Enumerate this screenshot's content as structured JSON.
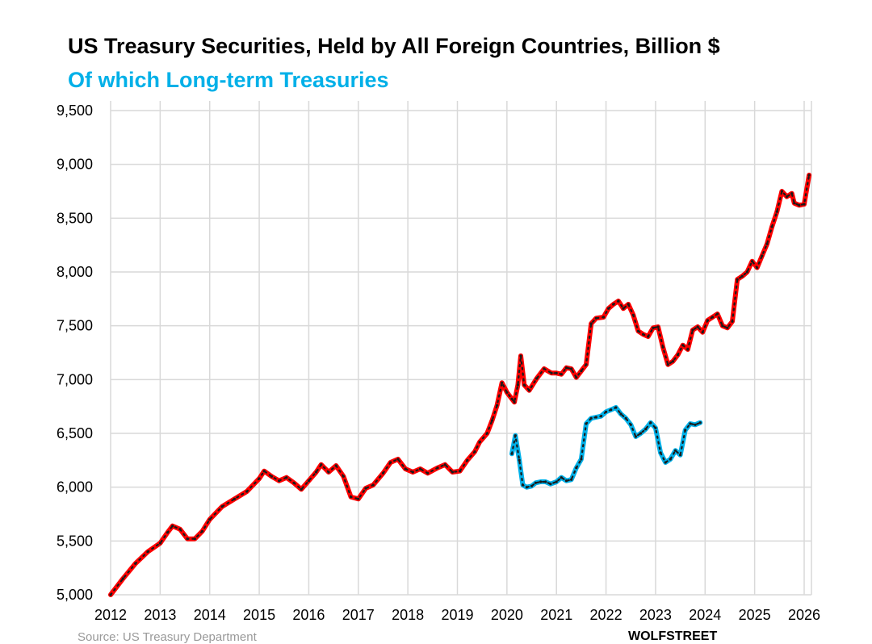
{
  "chart_data": {
    "type": "line",
    "title": "US Treasury Securities, Held by All Foreign Countries, Billion $",
    "subtitle": "Of which Long-term Treasuries",
    "xlabel": "",
    "ylabel": "",
    "xlim": [
      2012,
      2026.1
    ],
    "ylim": [
      5000,
      9500
    ],
    "x_ticks": [
      2012,
      2013,
      2014,
      2015,
      2016,
      2017,
      2018,
      2019,
      2020,
      2021,
      2022,
      2023,
      2024,
      2025,
      2026
    ],
    "x_tick_labels": [
      "2012",
      "2013",
      "2014",
      "2015",
      "2016",
      "2017",
      "2018",
      "2019",
      "2020",
      "2021",
      "2022",
      "2023",
      "2024",
      "2025",
      "2026"
    ],
    "y_ticks": [
      5000,
      5500,
      6000,
      6500,
      7000,
      7500,
      8000,
      8500,
      9000,
      9500
    ],
    "y_tick_labels": [
      "5,000",
      "5,500",
      "6,000",
      "6,500",
      "7,000",
      "7,500",
      "8,000",
      "8,500",
      "9,000",
      "9,500"
    ],
    "grid": true,
    "series": [
      {
        "name": "US Treasury Securities, Held by All Foreign Countries",
        "color": "#ff0000",
        "points": [
          [
            2012.0,
            5000
          ],
          [
            2012.25,
            5150
          ],
          [
            2012.5,
            5290
          ],
          [
            2012.75,
            5400
          ],
          [
            2013.0,
            5480
          ],
          [
            2013.15,
            5580
          ],
          [
            2013.25,
            5640
          ],
          [
            2013.4,
            5610
          ],
          [
            2013.55,
            5520
          ],
          [
            2013.7,
            5520
          ],
          [
            2013.85,
            5590
          ],
          [
            2014.0,
            5700
          ],
          [
            2014.25,
            5820
          ],
          [
            2014.5,
            5890
          ],
          [
            2014.75,
            5960
          ],
          [
            2015.0,
            6080
          ],
          [
            2015.1,
            6150
          ],
          [
            2015.25,
            6100
          ],
          [
            2015.4,
            6060
          ],
          [
            2015.55,
            6090
          ],
          [
            2015.7,
            6040
          ],
          [
            2015.85,
            5980
          ],
          [
            2016.0,
            6060
          ],
          [
            2016.15,
            6140
          ],
          [
            2016.25,
            6210
          ],
          [
            2016.4,
            6140
          ],
          [
            2016.55,
            6200
          ],
          [
            2016.7,
            6100
          ],
          [
            2016.85,
            5910
          ],
          [
            2017.0,
            5890
          ],
          [
            2017.15,
            5990
          ],
          [
            2017.3,
            6020
          ],
          [
            2017.5,
            6130
          ],
          [
            2017.65,
            6230
          ],
          [
            2017.8,
            6260
          ],
          [
            2017.95,
            6170
          ],
          [
            2018.1,
            6140
          ],
          [
            2018.25,
            6170
          ],
          [
            2018.4,
            6130
          ],
          [
            2018.6,
            6180
          ],
          [
            2018.75,
            6210
          ],
          [
            2018.9,
            6140
          ],
          [
            2019.05,
            6150
          ],
          [
            2019.2,
            6250
          ],
          [
            2019.35,
            6330
          ],
          [
            2019.45,
            6420
          ],
          [
            2019.6,
            6500
          ],
          [
            2019.7,
            6620
          ],
          [
            2019.8,
            6760
          ],
          [
            2019.9,
            6970
          ],
          [
            2020.0,
            6880
          ],
          [
            2020.1,
            6820
          ],
          [
            2020.15,
            6790
          ],
          [
            2020.22,
            6950
          ],
          [
            2020.28,
            7220
          ],
          [
            2020.35,
            6950
          ],
          [
            2020.45,
            6900
          ],
          [
            2020.6,
            7010
          ],
          [
            2020.75,
            7100
          ],
          [
            2020.9,
            7060
          ],
          [
            2021.0,
            7060
          ],
          [
            2021.1,
            7050
          ],
          [
            2021.2,
            7110
          ],
          [
            2021.3,
            7100
          ],
          [
            2021.4,
            7020
          ],
          [
            2021.5,
            7080
          ],
          [
            2021.6,
            7140
          ],
          [
            2021.7,
            7520
          ],
          [
            2021.8,
            7570
          ],
          [
            2021.95,
            7580
          ],
          [
            2022.05,
            7660
          ],
          [
            2022.15,
            7700
          ],
          [
            2022.25,
            7730
          ],
          [
            2022.35,
            7660
          ],
          [
            2022.45,
            7700
          ],
          [
            2022.55,
            7600
          ],
          [
            2022.65,
            7450
          ],
          [
            2022.75,
            7420
          ],
          [
            2022.85,
            7400
          ],
          [
            2022.95,
            7480
          ],
          [
            2023.05,
            7490
          ],
          [
            2023.15,
            7300
          ],
          [
            2023.25,
            7140
          ],
          [
            2023.35,
            7170
          ],
          [
            2023.45,
            7230
          ],
          [
            2023.55,
            7320
          ],
          [
            2023.65,
            7280
          ],
          [
            2023.75,
            7460
          ],
          [
            2023.85,
            7490
          ],
          [
            2023.95,
            7440
          ],
          [
            2024.05,
            7550
          ],
          [
            2024.15,
            7580
          ],
          [
            2024.25,
            7610
          ],
          [
            2024.35,
            7500
          ],
          [
            2024.45,
            7480
          ],
          [
            2024.55,
            7540
          ],
          [
            2024.65,
            7930
          ],
          [
            2024.75,
            7960
          ],
          [
            2024.85,
            8000
          ],
          [
            2024.95,
            8100
          ],
          [
            2025.05,
            8040
          ],
          [
            2025.15,
            8150
          ],
          [
            2025.25,
            8260
          ],
          [
            2025.35,
            8420
          ],
          [
            2025.45,
            8560
          ],
          [
            2025.55,
            8750
          ],
          [
            2025.65,
            8700
          ],
          [
            2025.75,
            8730
          ],
          [
            2025.8,
            8640
          ],
          [
            2025.9,
            8620
          ],
          [
            2026.0,
            8630
          ],
          [
            2026.1,
            8900
          ]
        ]
      },
      {
        "name": "Of which Long-term Treasuries",
        "color": "#00b0e8",
        "points": [
          [
            2020.1,
            6310
          ],
          [
            2020.17,
            6480
          ],
          [
            2020.25,
            6250
          ],
          [
            2020.32,
            6020
          ],
          [
            2020.4,
            6000
          ],
          [
            2020.5,
            6010
          ],
          [
            2020.58,
            6040
          ],
          [
            2020.68,
            6050
          ],
          [
            2020.78,
            6050
          ],
          [
            2020.88,
            6030
          ],
          [
            2021.0,
            6050
          ],
          [
            2021.1,
            6090
          ],
          [
            2021.2,
            6060
          ],
          [
            2021.3,
            6070
          ],
          [
            2021.4,
            6180
          ],
          [
            2021.5,
            6260
          ],
          [
            2021.6,
            6590
          ],
          [
            2021.7,
            6640
          ],
          [
            2021.8,
            6650
          ],
          [
            2021.9,
            6660
          ],
          [
            2022.0,
            6700
          ],
          [
            2022.1,
            6720
          ],
          [
            2022.2,
            6740
          ],
          [
            2022.3,
            6680
          ],
          [
            2022.4,
            6640
          ],
          [
            2022.5,
            6580
          ],
          [
            2022.6,
            6470
          ],
          [
            2022.7,
            6500
          ],
          [
            2022.8,
            6540
          ],
          [
            2022.9,
            6600
          ],
          [
            2023.0,
            6550
          ],
          [
            2023.1,
            6320
          ],
          [
            2023.2,
            6230
          ],
          [
            2023.3,
            6260
          ],
          [
            2023.4,
            6340
          ],
          [
            2023.5,
            6300
          ],
          [
            2023.6,
            6530
          ],
          [
            2023.7,
            6590
          ],
          [
            2023.8,
            6580
          ],
          [
            2023.9,
            6600
          ]
        ]
      }
    ]
  },
  "watermark": "WOLFSTREET",
  "source_text": "Source: US Treasury Department"
}
